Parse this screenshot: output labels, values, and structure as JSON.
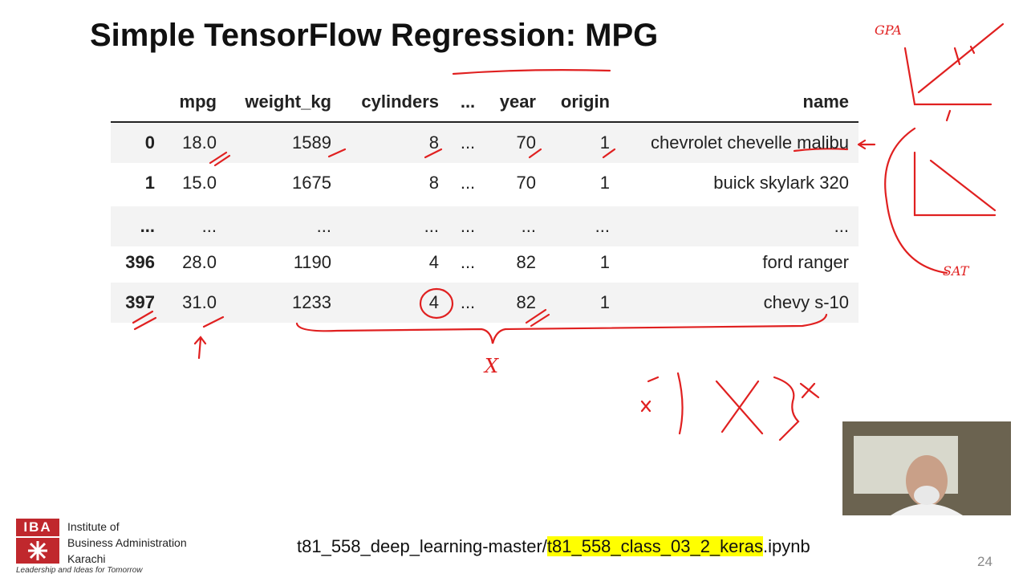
{
  "slide": {
    "title": "Simple TensorFlow Regression: MPG",
    "number": "24"
  },
  "table": {
    "columns": [
      "mpg",
      "weight_kg",
      "cylinders",
      "...",
      "year",
      "origin",
      "name"
    ],
    "rows": [
      [
        "0",
        "18.0",
        "1589",
        "8",
        "...",
        "70",
        "1",
        "chevrolet chevelle malibu"
      ],
      [
        "1",
        "15.0",
        "1675",
        "8",
        "...",
        "70",
        "1",
        "buick skylark 320"
      ],
      [
        "...",
        "...",
        "...",
        "...",
        "...",
        "...",
        "...",
        "..."
      ],
      [
        "396",
        "28.0",
        "1190",
        "4",
        "...",
        "82",
        "1",
        "ford ranger"
      ],
      [
        "397",
        "31.0",
        "1233",
        "4",
        "...",
        "82",
        "1",
        "chevy s-10"
      ]
    ]
  },
  "footer": {
    "prefix": "t81_558_deep_learning-master/",
    "highlight": "t81_558_class_03_2_keras",
    "suffix": ".ipynb"
  },
  "logo": {
    "mark": "IBA",
    "lines": [
      "Institute of",
      "Business Administration",
      "Karachi"
    ],
    "tagline": "Leadership and Ideas for Tomorrow"
  },
  "annotations": {
    "gpa": "GPA",
    "sat": "SAT",
    "x": "X"
  }
}
